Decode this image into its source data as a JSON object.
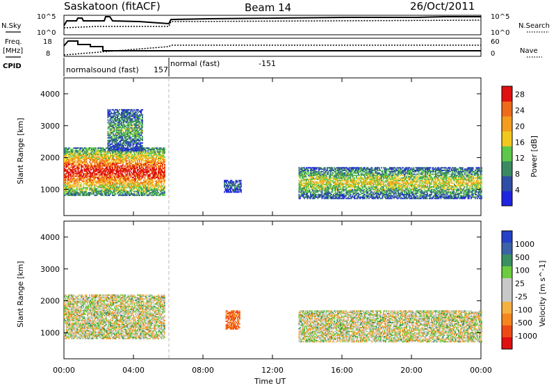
{
  "header": {
    "station": "Saskatoon (fitACF)",
    "beam": "Beam 14",
    "date": "26/Oct/2011"
  },
  "noise_panel": {
    "left_label": "N.Sky",
    "right_label": "N.Search",
    "left_ticks": [
      "10^5",
      "10^0"
    ],
    "right_ticks": [
      "10^5",
      "10^0"
    ]
  },
  "freq_panel": {
    "left_label_1": "Freq.",
    "left_label_2": "[MHz]",
    "cpid_label": "CPID",
    "right_label": "Nave",
    "left_ticks": [
      "18",
      "8"
    ],
    "right_ticks": [
      "60",
      "0"
    ]
  },
  "cpid_segments": [
    {
      "name": "normalsound (fast)",
      "cpid": "157"
    },
    {
      "name": "normal (fast)",
      "cpid": "-151"
    }
  ],
  "colors": {
    "power_scale": [
      "#1f24e0",
      "#2f4ea6",
      "#3b8a63",
      "#5ec84a",
      "#f2c81f",
      "#f39c1e",
      "#ef6a1a",
      "#e01010"
    ],
    "velocity_scale": [
      "#2441c8",
      "#3c62a8",
      "#3a8f60",
      "#6ccb3e",
      "#c8c8c8",
      "#c8c8c8",
      "#f5b042",
      "#f5861e",
      "#ee4a16",
      "#e01010"
    ]
  },
  "chart_data": [
    {
      "type": "heatmap",
      "title": "",
      "xlabel": "Time UT",
      "ylabel": "Slant Range [km]",
      "xlim": [
        0,
        24
      ],
      "ylim": [
        180,
        4500
      ],
      "x_ticks": [
        "00:00",
        "04:00",
        "08:00",
        "12:00",
        "16:00",
        "20:00",
        "00:00"
      ],
      "y_ticks": [
        "1000",
        "2000",
        "3000",
        "4000"
      ],
      "colorbar": {
        "label": "Power [dB]",
        "range": [
          0,
          30
        ],
        "ticks": [
          "4",
          "8",
          "12",
          "16",
          "20",
          "24",
          "28"
        ]
      },
      "regions": [
        {
          "t": [
            0,
            5.8
          ],
          "range_km": [
            800,
            2300
          ],
          "value": 24
        },
        {
          "t": [
            2.5,
            4.5
          ],
          "range_km": [
            2200,
            3500
          ],
          "value": 10
        },
        {
          "t": [
            9.2,
            10.2
          ],
          "range_km": [
            900,
            1300
          ],
          "value": 6
        },
        {
          "t": [
            13.5,
            24
          ],
          "range_km": [
            700,
            1700
          ],
          "value": 14
        }
      ]
    },
    {
      "type": "heatmap",
      "title": "",
      "xlabel": "Time UT",
      "ylabel": "Slant Range [km]",
      "xlim": [
        0,
        24
      ],
      "ylim": [
        180,
        4500
      ],
      "x_ticks": [
        "00:00",
        "04:00",
        "08:00",
        "12:00",
        "16:00",
        "20:00",
        "00:00"
      ],
      "y_ticks": [
        "1000",
        "2000",
        "3000",
        "4000"
      ],
      "colorbar": {
        "label": "Velocity [m s^-1]",
        "ticks": [
          "1000",
          "500",
          "100",
          "25",
          "-25",
          "-100",
          "-500",
          "-1000"
        ]
      },
      "regions": [
        {
          "t": [
            0,
            5.8
          ],
          "range_km": [
            800,
            2200
          ],
          "value": 0
        },
        {
          "t": [
            9.3,
            10.1
          ],
          "range_km": [
            1100,
            1700
          ],
          "value": -300
        },
        {
          "t": [
            13.5,
            24
          ],
          "range_km": [
            700,
            1700
          ],
          "value": 0
        }
      ]
    }
  ]
}
